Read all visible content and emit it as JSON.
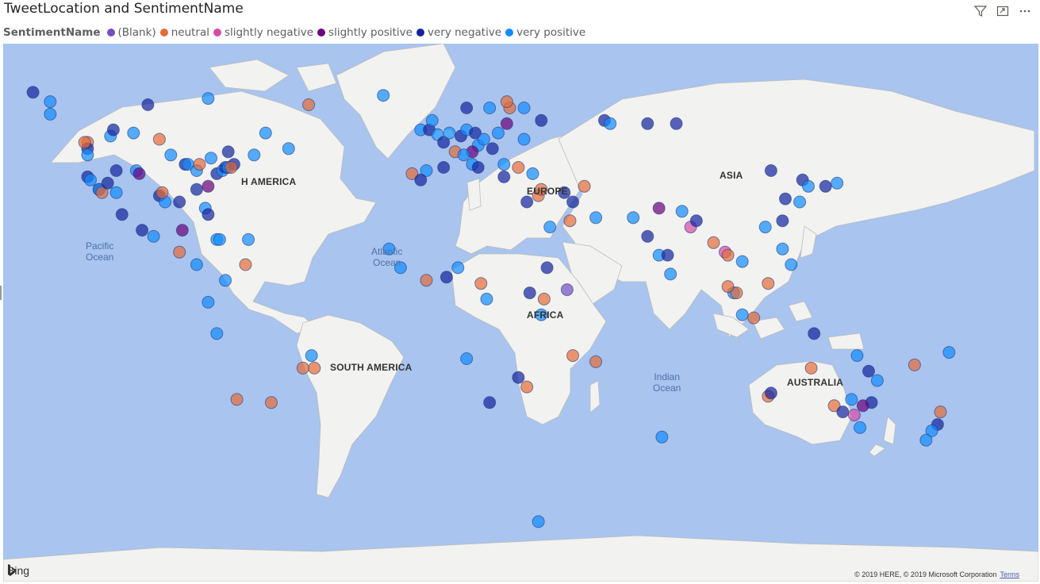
{
  "visual": {
    "title": "TweetLocation and SentimentName"
  },
  "header_icons": [
    "filter-icon",
    "focus-mode-icon",
    "more-options-icon"
  ],
  "legend": {
    "title": "SentimentName",
    "items": [
      {
        "label": "(Blank)",
        "color": "#744ec2"
      },
      {
        "label": "neutral",
        "color": "#e66c37"
      },
      {
        "label": "slightly negative",
        "color": "#d64ba8"
      },
      {
        "label": "slightly positive",
        "color": "#6b007b"
      },
      {
        "label": "very negative",
        "color": "#12239e"
      },
      {
        "label": "very positive",
        "color": "#118dff"
      }
    ]
  },
  "map_labels": {
    "pacific": "Pacific\nOcean",
    "atlantic": "Atlantic\nOcean",
    "indian": "Indian\nOcean",
    "north_america": "H AMERICA",
    "south_america": "SOUTH AMERICA",
    "europe": "EUROPE",
    "africa": "AFRICA",
    "asia": "ASIA",
    "australia": "AUSTRALIA"
  },
  "attribution": {
    "bing": "Bing",
    "copyright": "© 2019 HERE, © 2019 Microsoft Corporation",
    "terms": "Terms"
  },
  "chart_data": {
    "type": "scatter",
    "series": [
      {
        "name": "(Blank)",
        "color": "#744ec2"
      },
      {
        "name": "neutral",
        "color": "#e66c37"
      },
      {
        "name": "slightly negative",
        "color": "#d64ba8"
      },
      {
        "name": "slightly positive",
        "color": "#6b007b"
      },
      {
        "name": "very negative",
        "color": "#12239e"
      },
      {
        "name": "very positive",
        "color": "#118dff"
      }
    ],
    "points_lon_lat": [
      [
        -150,
        61,
        5
      ],
      [
        -135,
        58,
        5
      ],
      [
        -122,
        49,
        1
      ],
      [
        -122,
        47,
        4
      ],
      [
        -122,
        45,
        5
      ],
      [
        -122,
        38,
        4
      ],
      [
        -121,
        37,
        5
      ],
      [
        -118,
        34,
        4
      ],
      [
        -118,
        34,
        5
      ],
      [
        -117,
        33,
        1
      ],
      [
        -115,
        36,
        4
      ],
      [
        -112,
        33,
        5
      ],
      [
        -112,
        40,
        4
      ],
      [
        -105,
        40,
        5
      ],
      [
        -104,
        39,
        3
      ],
      [
        -97,
        32,
        4
      ],
      [
        -95,
        30,
        5
      ],
      [
        -96,
        33,
        1
      ],
      [
        -90,
        30,
        4
      ],
      [
        -93,
        45,
        5
      ],
      [
        -88,
        42,
        4
      ],
      [
        -87,
        42,
        5
      ],
      [
        -84,
        34,
        4
      ],
      [
        -84,
        40,
        5
      ],
      [
        -83,
        42,
        1
      ],
      [
        -81,
        28,
        5
      ],
      [
        -80,
        26,
        4
      ],
      [
        -80,
        35,
        3
      ],
      [
        -77,
        39,
        4
      ],
      [
        -75,
        40,
        5
      ],
      [
        -74,
        41,
        4
      ],
      [
        -73,
        41,
        5
      ],
      [
        -71,
        42,
        4
      ],
      [
        -72,
        41,
        1
      ],
      [
        -79,
        44,
        5
      ],
      [
        -73,
        46,
        4
      ],
      [
        -64,
        45,
        5
      ],
      [
        -66,
        18,
        5
      ],
      [
        -52,
        47,
        5
      ],
      [
        -123,
        49,
        1
      ],
      [
        -114,
        51,
        5
      ],
      [
        -113,
        53,
        4
      ],
      [
        -97,
        50,
        1
      ],
      [
        -106,
        52,
        5
      ],
      [
        -99,
        19,
        5
      ],
      [
        -103,
        21,
        4
      ],
      [
        -90,
        14,
        1
      ],
      [
        -89,
        21,
        3
      ],
      [
        -84,
        10,
        5
      ],
      [
        -77,
        18,
        5
      ],
      [
        -76,
        18,
        5
      ],
      [
        -74,
        5,
        5
      ],
      [
        -67,
        10,
        1
      ],
      [
        -80,
        -2,
        5
      ],
      [
        -77,
        -12,
        5
      ],
      [
        -70,
        -33,
        1
      ],
      [
        -58,
        -34,
        1
      ],
      [
        -47,
        -23,
        1
      ],
      [
        -43,
        -23,
        1
      ],
      [
        -44,
        -19,
        5
      ],
      [
        -156,
        21,
        1
      ],
      [
        -157,
        20,
        3
      ],
      [
        -165,
        62,
        5
      ],
      [
        -150,
        64,
        5
      ],
      [
        -141,
        65,
        4
      ],
      [
        -135,
        62,
        5
      ],
      [
        -101,
        61,
        4
      ],
      [
        -80,
        63,
        5
      ],
      [
        -60,
        52,
        5
      ],
      [
        -45,
        61,
        1
      ],
      [
        -19,
        64,
        5
      ],
      [
        -158,
        -15,
        0
      ],
      [
        -110,
        26,
        4
      ],
      [
        -155,
        21,
        4
      ],
      [
        -6,
        53,
        5
      ],
      [
        -3,
        53,
        4
      ],
      [
        -0.1,
        51.5,
        5
      ],
      [
        -2,
        56,
        5
      ],
      [
        2,
        49,
        4
      ],
      [
        4,
        52,
        5
      ],
      [
        6,
        46,
        1
      ],
      [
        8,
        51,
        4
      ],
      [
        10,
        53,
        5
      ],
      [
        13,
        52,
        4
      ],
      [
        14,
        48,
        5
      ],
      [
        12,
        46,
        3
      ],
      [
        9,
        45,
        5
      ],
      [
        2,
        41,
        4
      ],
      [
        -4,
        40,
        5
      ],
      [
        -9,
        39,
        1
      ],
      [
        -6,
        37,
        4
      ],
      [
        12,
        42,
        5
      ],
      [
        14,
        41,
        4
      ],
      [
        16,
        50,
        5
      ],
      [
        19,
        47,
        4
      ],
      [
        21,
        52,
        5
      ],
      [
        24,
        55,
        3
      ],
      [
        18,
        60,
        5
      ],
      [
        10,
        60,
        4
      ],
      [
        25,
        60,
        1
      ],
      [
        30,
        60,
        5
      ],
      [
        24,
        62,
        1
      ],
      [
        36,
        56,
        4
      ],
      [
        30,
        50,
        5
      ],
      [
        23,
        42,
        5
      ],
      [
        23,
        38,
        4
      ],
      [
        28,
        41,
        1
      ],
      [
        33,
        39,
        5
      ],
      [
        35,
        32,
        1
      ],
      [
        31,
        30,
        4
      ],
      [
        36,
        34,
        1
      ],
      [
        39,
        22,
        5
      ],
      [
        44,
        33,
        4
      ],
      [
        51,
        35,
        1
      ],
      [
        55,
        25,
        5
      ],
      [
        47,
        30,
        4
      ],
      [
        46,
        24,
        1
      ],
      [
        58,
        56,
        4
      ],
      [
        60,
        55,
        5
      ],
      [
        73,
        55,
        4
      ],
      [
        83,
        55,
        4
      ],
      [
        68,
        25,
        5
      ],
      [
        73,
        19,
        4
      ],
      [
        77,
        13,
        5
      ],
      [
        77,
        28,
        3
      ],
      [
        80,
        13,
        4
      ],
      [
        88,
        22,
        2
      ],
      [
        85,
        27,
        5
      ],
      [
        90,
        24,
        4
      ],
      [
        81,
        7,
        5
      ],
      [
        96,
        17,
        1
      ],
      [
        100,
        14,
        2
      ],
      [
        101,
        13,
        1
      ],
      [
        103,
        1,
        5
      ],
      [
        106,
        11,
        5
      ],
      [
        110,
        -7,
        1
      ],
      [
        106,
        -6,
        5
      ],
      [
        120,
        15,
        5
      ],
      [
        121,
        31,
        4
      ],
      [
        116,
        40,
        4
      ],
      [
        114,
        22,
        5
      ],
      [
        127,
        37,
        4
      ],
      [
        129,
        35,
        5
      ],
      [
        135,
        35,
        4
      ],
      [
        139,
        36,
        5
      ],
      [
        126,
        30,
        5
      ],
      [
        120,
        24,
        4
      ],
      [
        123,
        10,
        5
      ],
      [
        115,
        4,
        1
      ],
      [
        104,
        1,
        1
      ],
      [
        101,
        3,
        1
      ],
      [
        -17,
        15,
        5
      ],
      [
        -13,
        9,
        5
      ],
      [
        -4,
        5,
        1
      ],
      [
        3,
        6,
        4
      ],
      [
        7,
        9,
        5
      ],
      [
        15,
        4,
        1
      ],
      [
        17,
        -1,
        5
      ],
      [
        28,
        -26,
        4
      ],
      [
        31,
        -29,
        1
      ],
      [
        18,
        -34,
        4
      ],
      [
        32,
        1,
        4
      ],
      [
        37,
        -1,
        1
      ],
      [
        45,
        2,
        0
      ],
      [
        38,
        9,
        4
      ],
      [
        36,
        -6,
        5
      ],
      [
        10,
        -20,
        5
      ],
      [
        47,
        -19,
        1
      ],
      [
        55,
        -21,
        1
      ],
      [
        115,
        -32,
        1
      ],
      [
        116,
        -31,
        4
      ],
      [
        138,
        -35,
        1
      ],
      [
        141,
        -37,
        4
      ],
      [
        145,
        -38,
        2
      ],
      [
        151,
        -34,
        4
      ],
      [
        153,
        -27,
        5
      ],
      [
        150,
        -24,
        4
      ],
      [
        147,
        -42,
        5
      ],
      [
        146,
        -19,
        5
      ],
      [
        131,
        -12,
        4
      ],
      [
        130,
        -23,
        1
      ],
      [
        144,
        -33,
        5
      ],
      [
        148,
        -35,
        3
      ],
      [
        175,
        -37,
        1
      ],
      [
        174,
        -41,
        4
      ],
      [
        172,
        -43,
        5
      ],
      [
        170,
        -46,
        5
      ],
      [
        178,
        -18,
        5
      ],
      [
        166,
        -22,
        1
      ],
      [
        78,
        -45,
        5
      ],
      [
        35,
        -72,
        5
      ]
    ]
  }
}
